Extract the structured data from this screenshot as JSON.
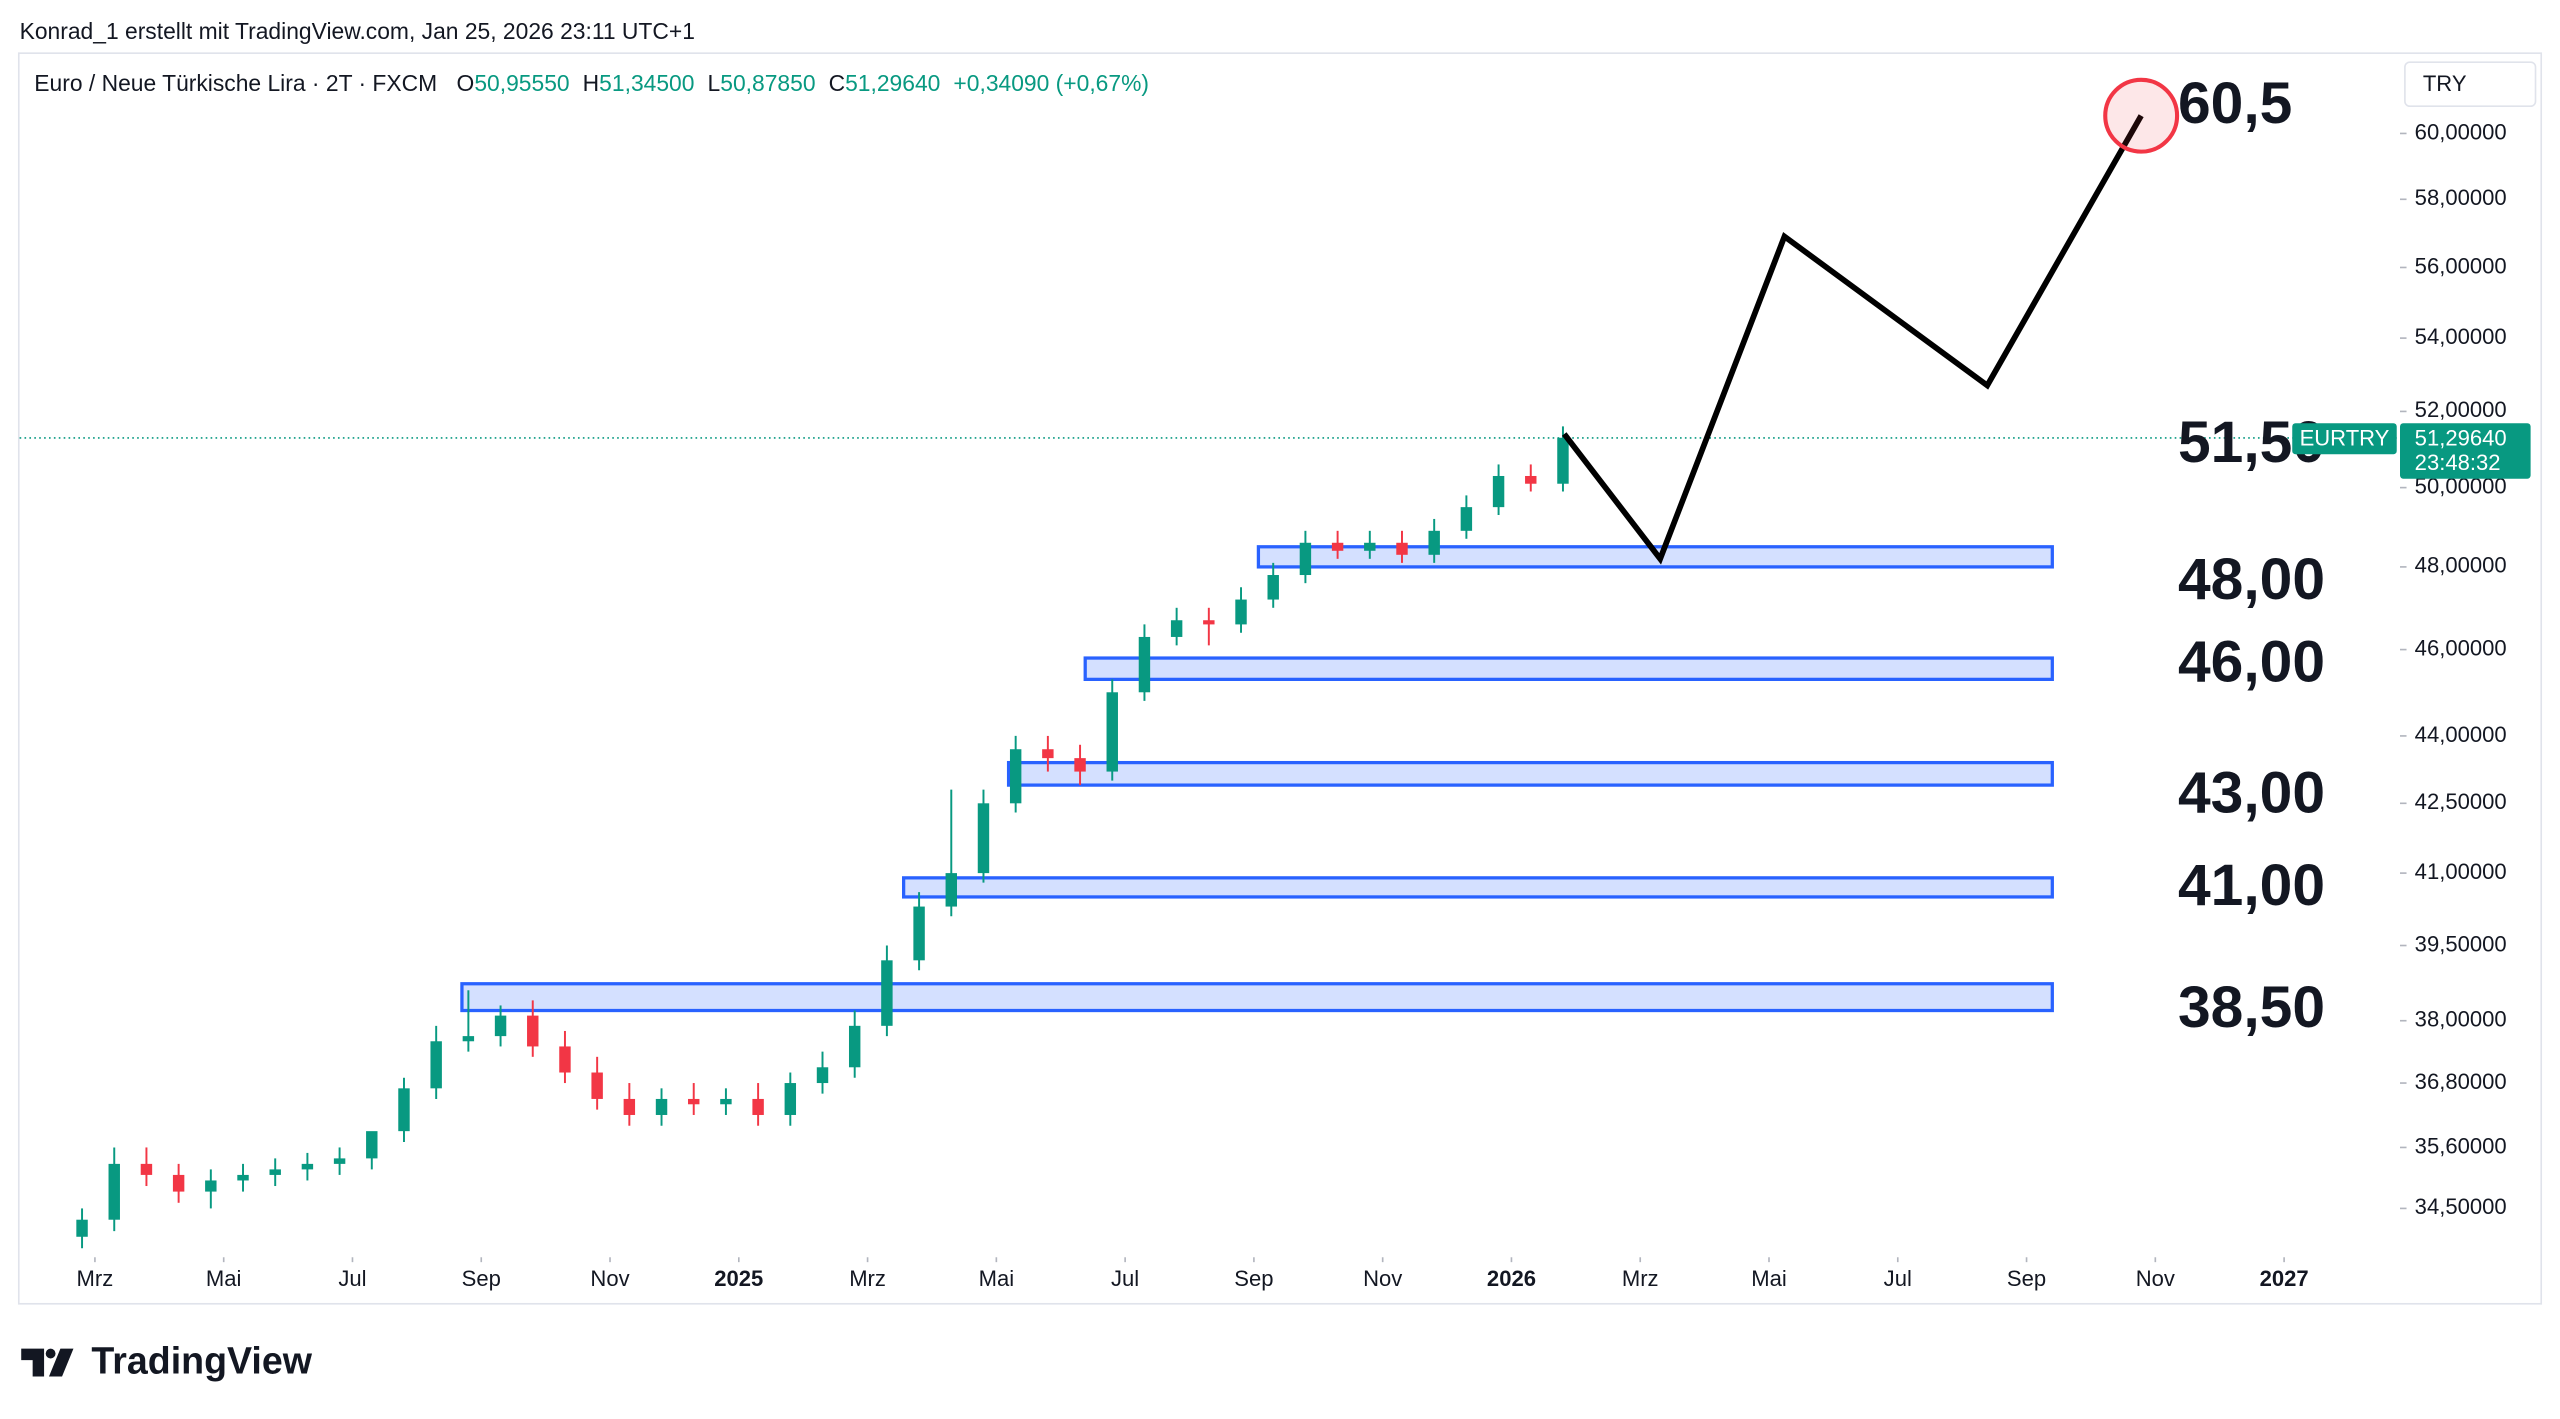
{
  "header": {
    "attribution": "Konrad_1 erstellt mit TradingView.com, Jan 25, 2026 23:11 UTC+1"
  },
  "legend": {
    "symbol": "Euro  / Neue Türkische Lira · 2T · FXCM",
    "items": [
      {
        "key": "O",
        "value": "50,95550"
      },
      {
        "key": "H",
        "value": "51,34500"
      },
      {
        "key": "L",
        "value": "50,87850"
      },
      {
        "key": "C",
        "value": "51,29640"
      }
    ],
    "change": "+0,34090 (+0,67%)"
  },
  "currency_button": "TRY",
  "chart_data": {
    "type": "candlestick",
    "log_scale": true,
    "grid": false,
    "up_color": "#089981",
    "down_color": "#f23645",
    "x": [
      1.8,
      2.3,
      2.8,
      3.3,
      3.8,
      4.3,
      4.8,
      5.3,
      5.8,
      6.3,
      6.8,
      7.3,
      7.8,
      8.3,
      8.8,
      9.3,
      9.8,
      10.3,
      10.8,
      11.3,
      11.8,
      12.3,
      12.8,
      13.3,
      13.8,
      14.3,
      14.8,
      15.3,
      15.8,
      16.3,
      16.8,
      17.3,
      17.8,
      18.3,
      18.8,
      19.3,
      19.8,
      20.3,
      20.8,
      21.3,
      21.8,
      22.3,
      22.8,
      23.3,
      23.8,
      24.3,
      24.8
    ],
    "open": [
      34.0,
      34.3,
      35.3,
      35.1,
      34.8,
      35.0,
      35.1,
      35.2,
      35.3,
      35.4,
      35.9,
      36.7,
      37.6,
      37.7,
      38.1,
      37.5,
      37.0,
      36.5,
      36.2,
      36.5,
      36.4,
      36.5,
      36.2,
      36.8,
      37.1,
      37.9,
      39.2,
      40.3,
      41.0,
      42.5,
      43.7,
      43.5,
      43.2,
      45.0,
      46.3,
      46.7,
      46.6,
      47.2,
      47.8,
      48.6,
      48.4,
      48.6,
      48.3,
      48.9,
      49.5,
      50.3,
      50.1
    ],
    "high": [
      34.5,
      35.6,
      35.6,
      35.3,
      35.2,
      35.3,
      35.4,
      35.5,
      35.6,
      35.7,
      36.9,
      37.9,
      38.6,
      38.3,
      38.4,
      37.8,
      37.3,
      36.8,
      36.7,
      36.8,
      36.7,
      36.8,
      37.0,
      37.4,
      38.2,
      39.5,
      40.6,
      42.8,
      42.8,
      44.0,
      44.0,
      43.8,
      45.3,
      46.6,
      47.0,
      47.0,
      47.5,
      48.1,
      48.9,
      48.9,
      48.9,
      48.9,
      49.2,
      49.8,
      50.6,
      50.6,
      51.6
    ],
    "low": [
      33.8,
      34.1,
      34.9,
      34.6,
      34.5,
      34.8,
      34.9,
      35.0,
      35.1,
      35.2,
      35.7,
      36.5,
      37.4,
      37.5,
      37.3,
      36.8,
      36.3,
      36.0,
      36.0,
      36.2,
      36.2,
      36.0,
      36.0,
      36.6,
      36.9,
      37.7,
      39.0,
      40.1,
      40.8,
      42.3,
      43.2,
      42.9,
      43.0,
      44.8,
      46.1,
      46.1,
      46.4,
      47.0,
      47.6,
      48.2,
      48.2,
      48.1,
      48.1,
      48.7,
      49.3,
      49.9,
      49.9
    ],
    "close": [
      34.3,
      35.3,
      35.1,
      34.8,
      35.0,
      35.1,
      35.2,
      35.3,
      35.4,
      35.9,
      36.7,
      37.6,
      37.7,
      38.1,
      37.5,
      37.0,
      36.5,
      36.2,
      36.5,
      36.4,
      36.5,
      36.2,
      36.8,
      37.1,
      37.9,
      39.2,
      40.3,
      41.0,
      42.5,
      43.7,
      43.5,
      43.2,
      45.0,
      46.3,
      46.7,
      46.6,
      47.2,
      47.8,
      48.6,
      48.4,
      48.6,
      48.3,
      48.9,
      49.5,
      50.3,
      50.1,
      51.3
    ],
    "xlim": [
      0.83,
      37.8
    ],
    "xticks": [
      {
        "value": 2,
        "label": "Mrz"
      },
      {
        "value": 4,
        "label": "Mai"
      },
      {
        "value": 6,
        "label": "Jul"
      },
      {
        "value": 8,
        "label": "Sep"
      },
      {
        "value": 10,
        "label": "Nov"
      },
      {
        "value": 12,
        "label": "2025"
      },
      {
        "value": 14,
        "label": "Mrz"
      },
      {
        "value": 16,
        "label": "Mai"
      },
      {
        "value": 18,
        "label": "Jul"
      },
      {
        "value": 20,
        "label": "Sep"
      },
      {
        "value": 22,
        "label": "Nov"
      },
      {
        "value": 24,
        "label": "2026"
      },
      {
        "value": 26,
        "label": "Mrz"
      },
      {
        "value": 28,
        "label": "Mai"
      },
      {
        "value": 30,
        "label": "Jul"
      },
      {
        "value": 32,
        "label": "Sep"
      },
      {
        "value": 34,
        "label": "Nov"
      },
      {
        "value": 36,
        "label": "2027"
      }
    ],
    "ylim": [
      33.7,
      62.4
    ],
    "yticks": [
      {
        "value": 34.5,
        "label": "34,50000"
      },
      {
        "value": 35.6,
        "label": "35,60000"
      },
      {
        "value": 36.8,
        "label": "36,80000"
      },
      {
        "value": 38,
        "label": "38,00000"
      },
      {
        "value": 39.5,
        "label": "39,50000"
      },
      {
        "value": 41,
        "label": "41,00000"
      },
      {
        "value": 42.5,
        "label": "42,50000"
      },
      {
        "value": 44,
        "label": "44,00000"
      },
      {
        "value": 46,
        "label": "46,00000"
      },
      {
        "value": 48,
        "label": "48,00000"
      },
      {
        "value": 50,
        "label": "50,00000"
      },
      {
        "value": 52,
        "label": "52,00000"
      },
      {
        "value": 54,
        "label": "54,00000"
      },
      {
        "value": 56,
        "label": "56,00000"
      },
      {
        "value": 58,
        "label": "58,00000"
      },
      {
        "value": 60,
        "label": "60,00000"
      }
    ],
    "zones": [
      {
        "low": 48.0,
        "high": 48.5,
        "x_start": 20.07,
        "x_end": 32.4
      },
      {
        "low": 45.3,
        "high": 45.8,
        "x_start": 17.38,
        "x_end": 32.4
      },
      {
        "low": 42.9,
        "high": 43.4,
        "x_start": 16.19,
        "x_end": 32.4
      },
      {
        "low": 40.5,
        "high": 40.9,
        "x_start": 14.56,
        "x_end": 32.4
      },
      {
        "low": 38.2,
        "high": 38.73,
        "x_start": 7.7,
        "x_end": 32.4
      }
    ],
    "annotations": [
      {
        "value": 60.5,
        "label": "60,5"
      },
      {
        "value": 51.5,
        "label": "51,50"
      },
      {
        "value": 48,
        "label": "48,00"
      },
      {
        "value": 46,
        "label": "46,00"
      },
      {
        "value": 43,
        "label": "43,00"
      },
      {
        "value": 41,
        "label": "41,00"
      },
      {
        "value": 38.5,
        "label": "38,50"
      }
    ],
    "projection": {
      "x": [
        24.82,
        26.31,
        28.24,
        31.39,
        33.78
      ],
      "y": [
        51.4,
        48.2,
        56.9,
        52.7,
        60.55
      ]
    },
    "last_price": {
      "symbol": "EURTRY",
      "value": 51.2964,
      "label": "51,29640",
      "countdown": "23:48:32"
    }
  },
  "footer": {
    "brand": "TradingView"
  }
}
